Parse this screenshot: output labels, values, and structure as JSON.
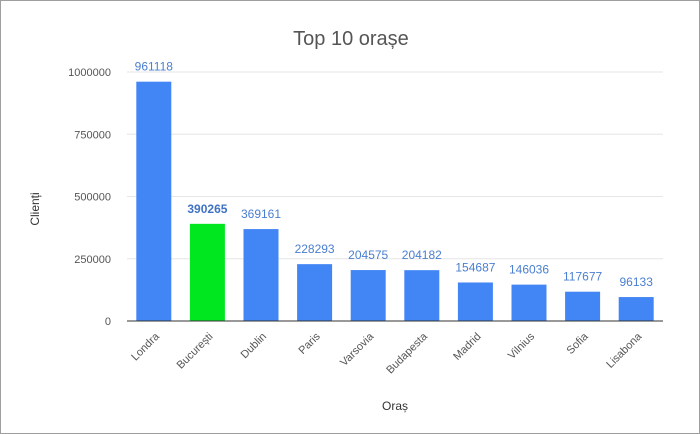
{
  "chart_data": {
    "type": "bar",
    "title": "Top 10 orașe",
    "xlabel": "Oraș",
    "ylabel": "Clienți",
    "categories": [
      "Londra",
      "București",
      "Dublin",
      "Paris",
      "Varsovia",
      "Budapesta",
      "Madrid",
      "Vilnius",
      "Sofia",
      "Lisabona"
    ],
    "values": [
      961118,
      390265,
      369161,
      228293,
      204575,
      204182,
      154687,
      146036,
      117677,
      96133
    ],
    "value_labels": [
      "961118",
      "390265",
      "369161",
      "228293",
      "204575",
      "204182",
      "154687",
      "146036",
      "117677",
      "96133"
    ],
    "ylim": [
      0,
      1000000
    ],
    "yticks": [
      0,
      250000,
      500000,
      750000,
      1000000
    ],
    "ytick_labels": [
      "0",
      "250000",
      "500000",
      "750000",
      "1000000"
    ],
    "grid": true,
    "legend": "none",
    "colors": {
      "bar": "#4285f4",
      "highlight": "#00e61f",
      "highlight_index": 1
    }
  }
}
